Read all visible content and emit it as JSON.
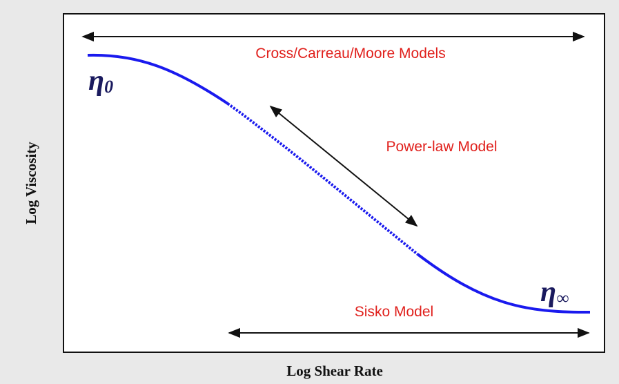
{
  "x_axis_label": "Log Shear Rate",
  "y_axis_label": "Log Viscosity",
  "annotations": {
    "top": "Cross/Carreau/Moore Models",
    "middle": "Power-law Model",
    "bottom": "Sisko Model"
  },
  "eta_zero": {
    "symbol": "η",
    "subscript": "0"
  },
  "eta_infinity": {
    "symbol": "η",
    "subscript": "∞"
  }
}
